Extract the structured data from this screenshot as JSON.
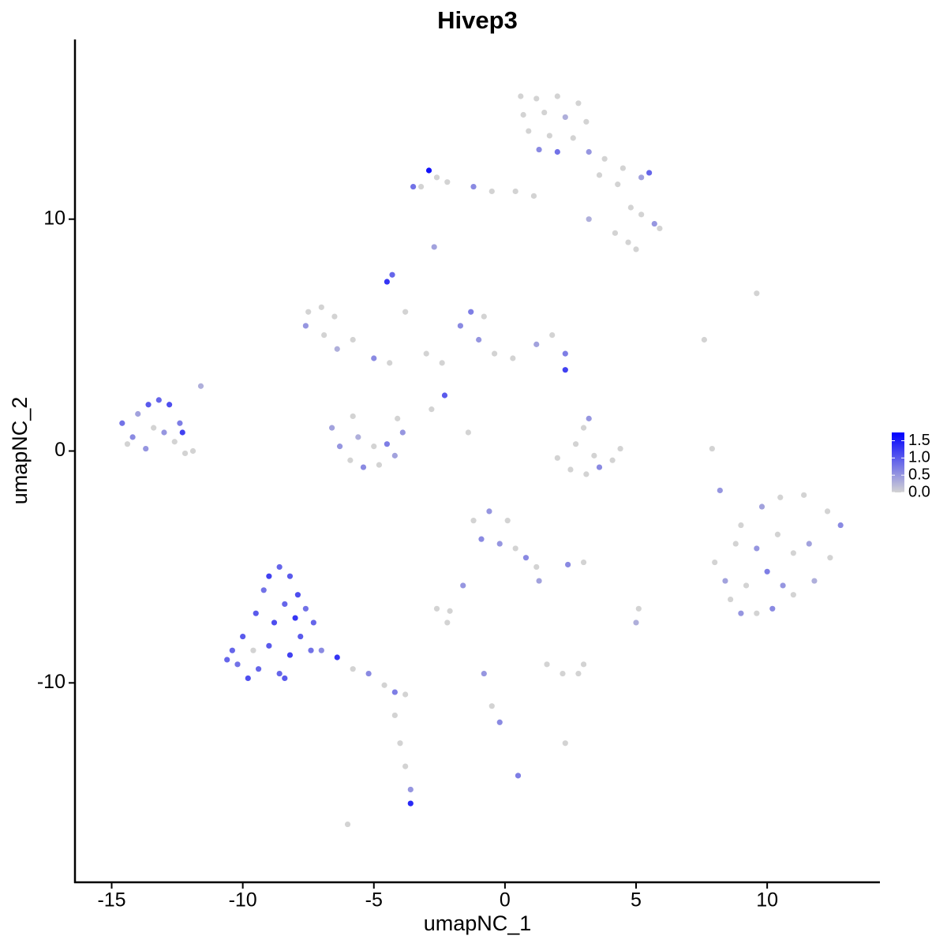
{
  "chart_data": {
    "type": "scatter",
    "title": "Hivep3",
    "x_label": "umapNC_1",
    "y_label": "umapNC_2",
    "xlim": [
      -16.4,
      14.3
    ],
    "ylim": [
      -18.6,
      17.75
    ],
    "xticks": [
      -15,
      -10,
      -5,
      0,
      5,
      10
    ],
    "yticks": [
      -10,
      0,
      10
    ],
    "color_low": "#d3d3d3",
    "color_high": "#0000ff",
    "color_lim": [
      0,
      1.74
    ],
    "color_ticks": [
      {
        "value": 0,
        "label": "0.0"
      },
      {
        "value": 0.5,
        "label": "0.5"
      },
      {
        "value": 1,
        "label": "1.0"
      },
      {
        "value": 1.5,
        "label": "1.5"
      }
    ],
    "x": [
      0.6,
      1.2,
      2,
      2.8,
      3.1,
      0.7,
      1.5,
      2.3,
      0.9,
      1.7,
      2.6,
      1.3,
      2.0,
      3.2,
      3.8,
      4.5,
      5.2,
      5.5,
      4.3,
      3.6,
      4.8,
      5.2,
      5.7,
      5.9,
      4.2,
      4.7,
      5.0,
      3.2,
      -2.9,
      -2.6,
      -3.2,
      -3.5,
      -2.2,
      -1.2,
      -0.5,
      0.4,
      1.1,
      -2.7,
      -7.5,
      -7.0,
      -6.5,
      -7.6,
      -6.9,
      -6.4,
      -5.8,
      -5.0,
      -4.4,
      -4.5,
      -4.3,
      -3.8,
      -3.0,
      -2.4,
      -1.7,
      -1.3,
      -0.8,
      -1.0,
      -0.4,
      0.3,
      1.2,
      1.8,
      2.3,
      2.3,
      -2.3,
      -6.6,
      -6.3,
      -5.9,
      -5.4,
      -4.8,
      -4.2,
      -3.9,
      -4.1,
      -5.8,
      -5.0,
      -5.6,
      -4.5,
      -2.8,
      -1.4,
      -14.6,
      -14.2,
      -14.0,
      -13.6,
      -13.2,
      -12.8,
      -13.4,
      -13.0,
      -12.6,
      -12.4,
      -12.2,
      -14.4,
      -13.7,
      -11.9,
      -11.6,
      -12.3,
      2.0,
      2.5,
      3.1,
      3.6,
      4.1,
      4.4,
      3.0,
      3.2,
      2.7,
      3.4,
      8.0,
      8.4,
      8.6,
      9.0,
      9.6,
      10.2,
      11,
      11.8,
      12.4,
      12.8,
      12.3,
      11.4,
      10.5,
      9.8,
      9.0,
      8.8,
      9.6,
      10.4,
      11,
      10.0,
      11.6,
      9.2,
      10.6,
      7.9,
      8.2,
      9.6,
      7.6,
      -1.2,
      -0.6,
      0.1,
      -0.9,
      -0.2,
      0.4,
      0.8,
      1.2,
      1.3,
      -1.6,
      2.4,
      3.0,
      -10.4,
      -10.0,
      -10.2,
      -9.8,
      -9.4,
      -9.5,
      -9.2,
      -9.0,
      -8.6,
      -8.2,
      -7.9,
      -7.6,
      -7.3,
      -7.8,
      -8.2,
      -8.6,
      -9.0,
      -8.8,
      -8.4,
      -8.0,
      -9.6,
      -8.4,
      -7.4,
      -10.6,
      -7.0,
      -6.4,
      -5.8,
      -5.2,
      -4.6,
      -4.2,
      -3.8,
      -4.2,
      -4.0,
      -3.8,
      -3.6,
      -3.6,
      -2.6,
      -2.1,
      -2.2,
      1.6,
      2.2,
      2.8,
      3.0,
      -0.8,
      -0.5,
      -0.2,
      2.3,
      0.5,
      -6.0,
      5.0,
      5.1
    ],
    "y": [
      15.3,
      15.2,
      15.3,
      15.0,
      14.2,
      14.5,
      14.6,
      14.4,
      13.8,
      13.6,
      13.5,
      13.0,
      12.9,
      12.9,
      12.6,
      12.2,
      11.8,
      12.0,
      11.5,
      11.9,
      10.5,
      10.2,
      9.8,
      9.6,
      9.4,
      9.0,
      8.7,
      10.0,
      12.1,
      11.8,
      11.4,
      11.4,
      11.6,
      11.4,
      11.2,
      11.2,
      11.0,
      8.8,
      6.0,
      6.2,
      5.8,
      5.4,
      5.0,
      4.4,
      4.8,
      4.0,
      3.8,
      7.3,
      7.6,
      6.0,
      4.2,
      3.8,
      5.4,
      6.0,
      5.8,
      4.8,
      4.2,
      4.0,
      4.6,
      5.0,
      4.2,
      3.5,
      2.4,
      1.0,
      0.2,
      -0.4,
      -0.7,
      -0.6,
      -0.2,
      0.8,
      1.4,
      1.5,
      0.2,
      0.6,
      0.3,
      1.8,
      0.8,
      1.2,
      0.6,
      1.6,
      2.0,
      2.2,
      2.0,
      1.0,
      0.8,
      0.4,
      1.2,
      -0.1,
      0.3,
      0.1,
      0.0,
      2.8,
      0.8,
      -0.3,
      -0.8,
      -1.0,
      -0.7,
      -0.4,
      0.1,
      1.0,
      1.4,
      0.3,
      -0.2,
      -4.8,
      -5.6,
      -6.4,
      -7.0,
      -7.0,
      -6.8,
      -6.2,
      -5.6,
      -4.6,
      -3.2,
      -2.6,
      -1.9,
      -2.0,
      -2.4,
      -3.2,
      -4.0,
      -4.2,
      -3.6,
      -4.4,
      -5.2,
      -4.0,
      -5.8,
      -5.8,
      0.1,
      -1.7,
      6.8,
      4.8,
      -3.0,
      -2.6,
      -3.0,
      -3.8,
      -4.0,
      -4.2,
      -4.6,
      -5.0,
      -5.6,
      -5.8,
      -4.9,
      -4.8,
      -8.6,
      -8.0,
      -9.2,
      -9.8,
      -9.4,
      -7.0,
      -6.0,
      -5.4,
      -5.0,
      -5.4,
      -6.2,
      -6.8,
      -7.4,
      -8.0,
      -8.8,
      -9.6,
      -8.4,
      -7.4,
      -6.6,
      -7.2,
      -8.6,
      -9.8,
      -8.6,
      -9.0,
      -8.6,
      -8.9,
      -9.4,
      -9.6,
      -10.1,
      -10.4,
      -10.5,
      -11.4,
      -12.6,
      -13.6,
      -14.6,
      -15.2,
      -6.8,
      -6.9,
      -7.4,
      -9.2,
      -9.6,
      -9.6,
      -9.2,
      -9.6,
      -11.0,
      -11.7,
      -12.6,
      -14.0,
      -16.1,
      -7.4,
      -6.8
    ],
    "values": [
      0,
      0,
      0,
      0,
      0,
      0,
      0,
      0.3,
      0,
      0,
      0,
      0.6,
      0.8,
      0.5,
      0,
      0,
      0.4,
      0.9,
      0,
      0,
      0,
      0,
      0.5,
      0,
      0,
      0,
      0,
      0.3,
      1.6,
      0,
      0,
      0.8,
      0,
      0.6,
      0,
      0,
      0,
      0.4,
      0,
      0,
      0,
      0.5,
      0,
      0.3,
      0,
      0.6,
      0,
      1.3,
      0.9,
      0,
      0,
      0,
      0.6,
      0.7,
      0,
      0.5,
      0,
      0,
      0.4,
      0,
      0.7,
      1.2,
      1.0,
      0.4,
      0.5,
      0,
      0.6,
      0,
      0.4,
      0.5,
      0,
      0,
      0,
      0.3,
      0.7,
      0,
      0,
      0.8,
      0.6,
      0.4,
      1.0,
      0.9,
      1.1,
      0,
      0.5,
      0,
      0.7,
      0,
      0,
      0.5,
      0,
      0.3,
      1.2,
      0,
      0,
      0,
      0.6,
      0,
      0,
      0,
      0.5,
      0,
      0,
      0,
      0.4,
      0,
      0.5,
      0,
      0.6,
      0,
      0.3,
      0,
      0.6,
      0,
      0,
      0,
      0.4,
      0,
      0,
      0.5,
      0,
      0,
      0.7,
      0.4,
      0,
      0.5,
      0,
      0.5,
      0,
      0,
      0,
      0.5,
      0,
      0.6,
      0.5,
      0,
      0.6,
      0,
      0.4,
      0.5,
      0.6,
      0,
      0.9,
      1.0,
      0.8,
      1.1,
      0.9,
      1.0,
      0.8,
      1.2,
      0.9,
      1.0,
      1.1,
      0.8,
      0.9,
      1.0,
      1.2,
      0.9,
      1.0,
      1.1,
      0.9,
      1.3,
      0,
      1.0,
      0.8,
      0.9,
      0.6,
      1.3,
      0,
      0.6,
      0,
      0.7,
      0,
      0,
      0,
      0,
      0.5,
      1.4,
      0,
      0,
      0,
      0,
      0,
      0,
      0,
      0.5,
      0,
      0.6,
      0,
      0.7,
      0,
      0.3,
      0
    ]
  }
}
